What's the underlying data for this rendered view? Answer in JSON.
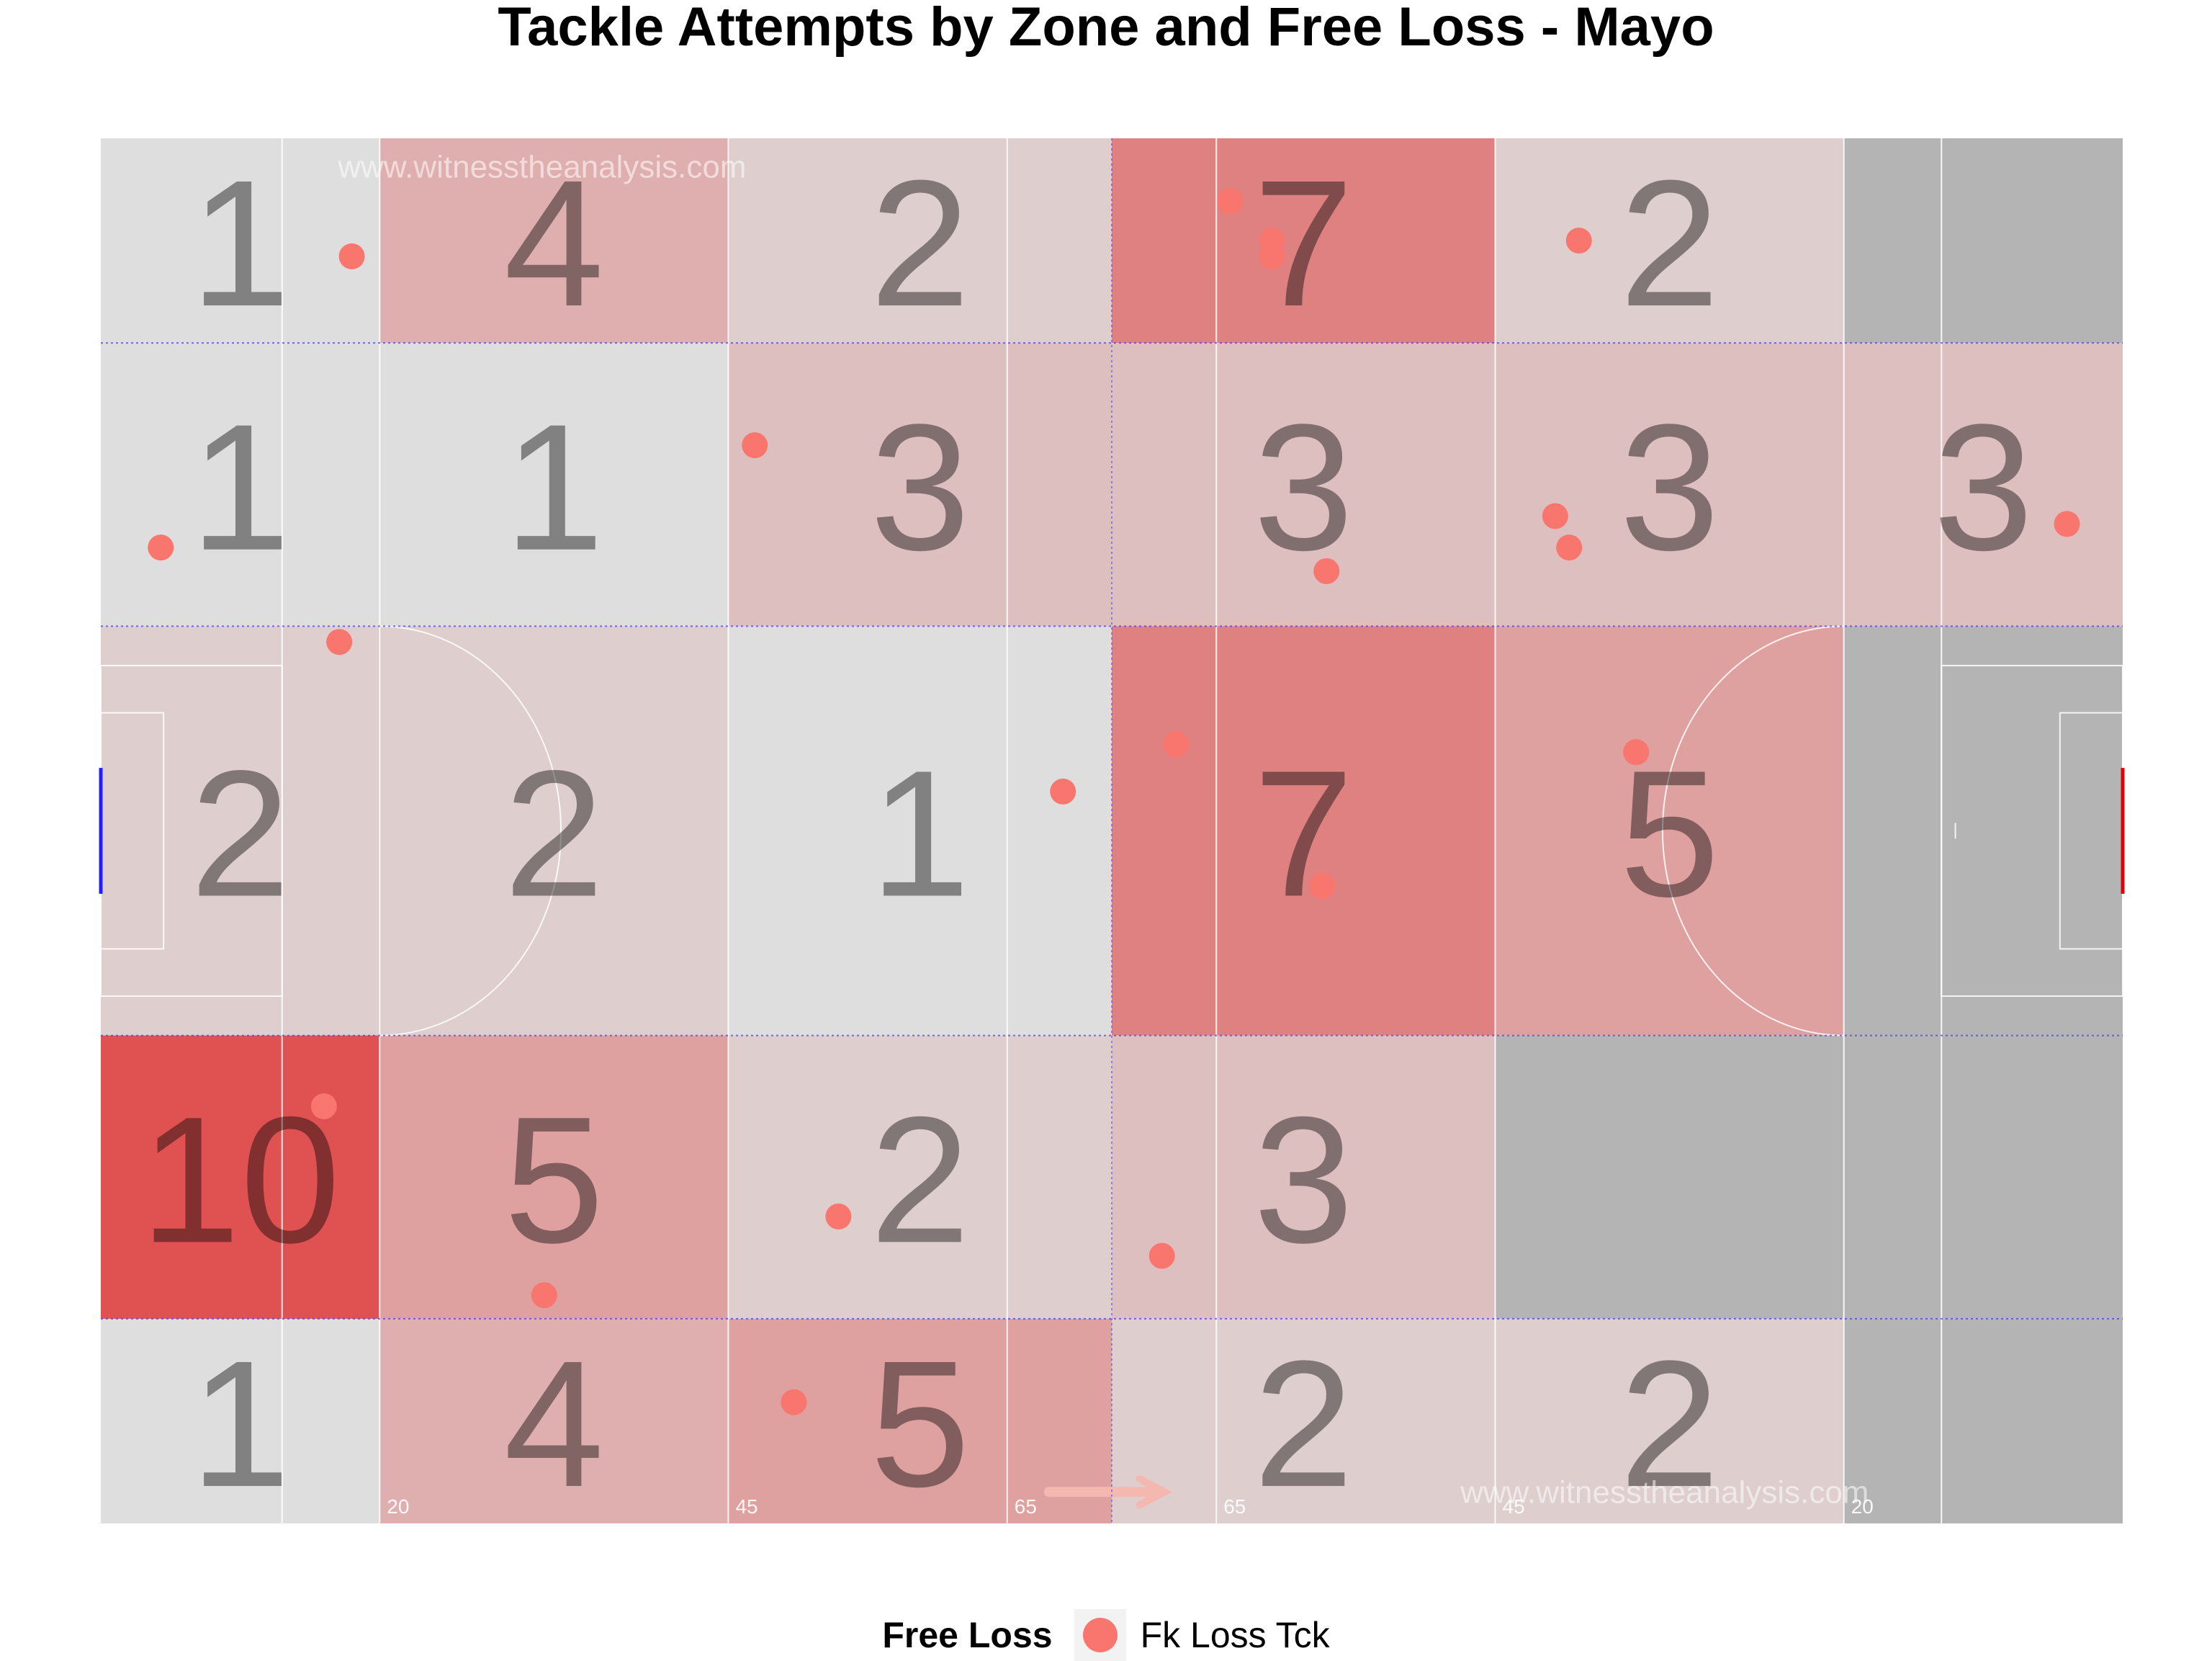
{
  "chart_data": {
    "type": "heatmap",
    "title": "Tackle Attempts by Zone and Free Loss - Mayo",
    "watermark": "www.witnesstheanalysis.com",
    "xlim": [
      0,
      145
    ],
    "ylim": [
      0,
      88
    ],
    "x_breaks": [
      0,
      20,
      45,
      72.5,
      100,
      125,
      145
    ],
    "y_breaks": [
      0,
      13,
      31,
      57,
      75,
      88
    ],
    "line_labels": [
      "20",
      "45",
      "65",
      "65",
      "45",
      "20"
    ],
    "colors": {
      "zone_empty": "#b4b4b4",
      "zone_low": "#dedede",
      "zone_high": "#e05252",
      "free_loss_point": "#F8766D",
      "divider": "#3a3af0",
      "left_goal": "#2020ff",
      "right_goal": "#e00000"
    },
    "zones": [
      {
        "row": 1,
        "col": 1,
        "count": 1
      },
      {
        "row": 1,
        "col": 2,
        "count": 4
      },
      {
        "row": 1,
        "col": 3,
        "count": 2
      },
      {
        "row": 1,
        "col": 4,
        "count": 7
      },
      {
        "row": 1,
        "col": 5,
        "count": 2
      },
      {
        "row": 1,
        "col": 6,
        "count": null
      },
      {
        "row": 2,
        "col": 1,
        "count": 1
      },
      {
        "row": 2,
        "col": 2,
        "count": 1
      },
      {
        "row": 2,
        "col": 3,
        "count": 3
      },
      {
        "row": 2,
        "col": 4,
        "count": 3
      },
      {
        "row": 2,
        "col": 5,
        "count": 3
      },
      {
        "row": 2,
        "col": 6,
        "count": 3
      },
      {
        "row": 3,
        "col": 1,
        "count": 2
      },
      {
        "row": 3,
        "col": 2,
        "count": 2
      },
      {
        "row": 3,
        "col": 3,
        "count": 1
      },
      {
        "row": 3,
        "col": 4,
        "count": 7
      },
      {
        "row": 3,
        "col": 5,
        "count": 5
      },
      {
        "row": 3,
        "col": 6,
        "count": null
      },
      {
        "row": 4,
        "col": 1,
        "count": 10
      },
      {
        "row": 4,
        "col": 2,
        "count": 5
      },
      {
        "row": 4,
        "col": 3,
        "count": 2
      },
      {
        "row": 4,
        "col": 4,
        "count": 3
      },
      {
        "row": 4,
        "col": 5,
        "count": null
      },
      {
        "row": 4,
        "col": 6,
        "count": null
      },
      {
        "row": 5,
        "col": 1,
        "count": 1
      },
      {
        "row": 5,
        "col": 2,
        "count": 4
      },
      {
        "row": 5,
        "col": 3,
        "count": 5
      },
      {
        "row": 5,
        "col": 4,
        "count": 2
      },
      {
        "row": 5,
        "col": 5,
        "count": 2
      },
      {
        "row": 5,
        "col": 6,
        "count": null
      }
    ],
    "points": [
      {
        "x": 18.0,
        "y": 80.5,
        "type": "Fk Loss Tck"
      },
      {
        "x": 81.0,
        "y": 84.0,
        "type": "Fk Loss Tck"
      },
      {
        "x": 84.0,
        "y": 81.5,
        "type": "Fk Loss Tck"
      },
      {
        "x": 84.0,
        "y": 80.5,
        "type": "Fk Loss Tck"
      },
      {
        "x": 106.0,
        "y": 81.5,
        "type": "Fk Loss Tck"
      },
      {
        "x": 4.3,
        "y": 62.0,
        "type": "Fk Loss Tck"
      },
      {
        "x": 46.9,
        "y": 68.5,
        "type": "Fk Loss Tck"
      },
      {
        "x": 87.9,
        "y": 60.5,
        "type": "Fk Loss Tck"
      },
      {
        "x": 104.3,
        "y": 64.0,
        "type": "Fk Loss Tck"
      },
      {
        "x": 105.3,
        "y": 62.0,
        "type": "Fk Loss Tck"
      },
      {
        "x": 141.0,
        "y": 63.5,
        "type": "Fk Loss Tck"
      },
      {
        "x": 17.1,
        "y": 56.0,
        "type": "Fk Loss Tck"
      },
      {
        "x": 77.1,
        "y": 49.5,
        "type": "Fk Loss Tck"
      },
      {
        "x": 110.1,
        "y": 49.0,
        "type": "Fk Loss Tck"
      },
      {
        "x": 69.0,
        "y": 46.5,
        "type": "Fk Loss Tck"
      },
      {
        "x": 87.6,
        "y": 40.5,
        "type": "Fk Loss Tck"
      },
      {
        "x": 16.0,
        "y": 26.5,
        "type": "Fk Loss Tck"
      },
      {
        "x": 52.9,
        "y": 19.5,
        "type": "Fk Loss Tck"
      },
      {
        "x": 76.1,
        "y": 17.0,
        "type": "Fk Loss Tck"
      },
      {
        "x": 31.8,
        "y": 14.5,
        "type": "Fk Loss Tck"
      },
      {
        "x": 49.7,
        "y": 7.7,
        "type": "Fk Loss Tck"
      }
    ],
    "legend": {
      "title": "Free Loss",
      "entries": [
        "Fk Loss Tck"
      ],
      "position": "bottom"
    }
  }
}
